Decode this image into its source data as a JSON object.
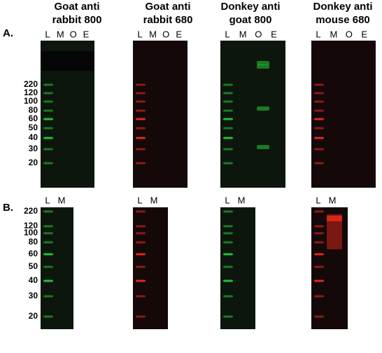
{
  "panel_a": {
    "label": "A.",
    "blots": [
      {
        "title_lines": [
          "Goat anti",
          "rabbit 800"
        ],
        "lanes": [
          "L",
          "M",
          "O",
          "E"
        ]
      },
      {
        "title_lines": [
          "Goat anti",
          "rabbit 680"
        ],
        "lanes": [
          "L",
          "M",
          "O",
          "E"
        ]
      },
      {
        "title_lines": [
          "Donkey anti",
          "goat 800"
        ],
        "lanes": [
          "L",
          "M",
          "O",
          "E"
        ]
      },
      {
        "title_lines": [
          "Donkey anti",
          "mouse 680"
        ],
        "lanes": [
          "L",
          "M",
          "O",
          "E"
        ]
      }
    ],
    "markers": [
      220,
      120,
      100,
      80,
      60,
      50,
      40,
      30,
      20
    ]
  },
  "panel_b": {
    "label": "B.",
    "blots": [
      {
        "lanes": [
          "L",
          "M"
        ]
      },
      {
        "lanes": [
          "L",
          "M"
        ]
      },
      {
        "lanes": [
          "L",
          "M"
        ]
      },
      {
        "lanes": [
          "L",
          "M"
        ]
      }
    ],
    "markers": [
      220,
      120,
      100,
      80,
      60,
      50,
      40,
      30,
      20
    ]
  }
}
